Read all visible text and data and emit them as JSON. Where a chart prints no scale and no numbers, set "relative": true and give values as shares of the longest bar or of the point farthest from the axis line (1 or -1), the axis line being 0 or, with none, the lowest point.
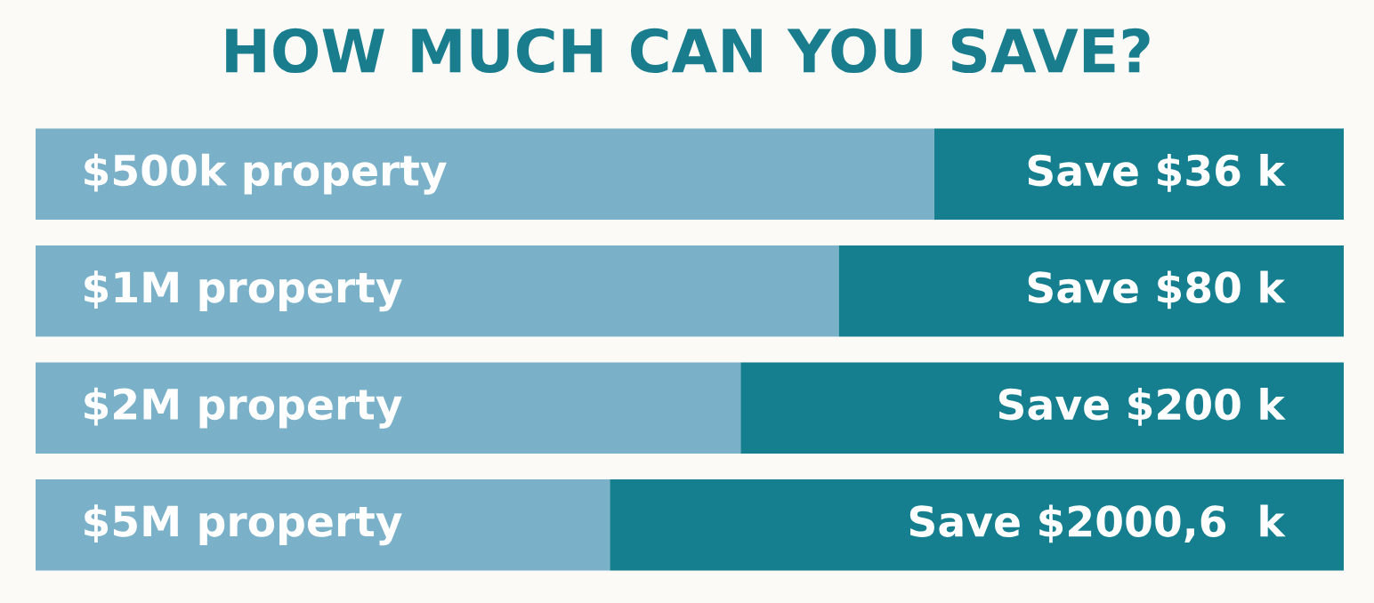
{
  "chart_data": {
    "type": "bar",
    "orientation": "horizontal",
    "stacked": true,
    "relative": true,
    "title": "HOW MUCH CAN YOU SAVE?",
    "categories": [
      "$500k property",
      "$1M property",
      "$2M property",
      "$5M property"
    ],
    "series": [
      {
        "color": "#7ab1c9",
        "values": [
          0.687,
          0.614,
          0.539,
          0.439
        ]
      },
      {
        "color": "#157f90",
        "values": [
          0.313,
          0.386,
          0.461,
          0.561
        ]
      }
    ],
    "annotations": [
      "Save $36 k",
      "Save $80 k",
      "Save $200 k",
      "Save $2000,6  k"
    ],
    "legend": false
  }
}
